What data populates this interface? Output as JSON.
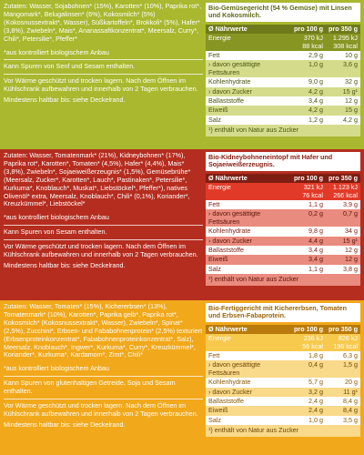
{
  "sections": [
    {
      "ingredients": "Zutaten: Wasser, Sojabohnen* (15%), Karotten* (10%), Paprika rot*, Mangomark*, Belugalinsen* (6%), Kokosmilch* (5%) (Kokosnussextrakt*, Wasser), Süßkartoffeln*, Brokkoli* (5%), Hafer* (3,8%), Zwiebeln*, Mais*, Ananassaftkonzentrat*, Meersalz, Curry*, Chili*, Petersilie*, Pfeffer*",
      "organic_note": "*aus kontrolliert biologischem Anbau",
      "allergen": "Kann Spuren von Senf und Sesam enthalten.",
      "storage": "Vor Wärme geschützt und trocken lagern. Nach dem Öffnen im Kühlschrank aufbewahren und innerhalb von 2 Tagen verbrauchen.",
      "best_before": "Mindestens haltbar bis: siehe Deckelrand.",
      "product_title": "Bio-Gemüsegericht (54 % Gemüse) mit Linsen und Kokosmilch.",
      "table_head": [
        "Ø Nährwerte",
        "pro 100 g",
        "pro 350 g"
      ],
      "rows": [
        {
          "label": "Energie",
          "v1": "370 kJ\n88 kcal",
          "v2": "1.295 kJ\n308 kcal"
        },
        {
          "label": "Fett",
          "v1": "2,9 g",
          "v2": "10 g"
        },
        {
          "label": "› davon gesättigte Fettsäuren",
          "v1": "1,0 g",
          "v2": "3,6 g"
        },
        {
          "label": "Kohlenhydrate",
          "v1": "9,0 g",
          "v2": "32 g"
        },
        {
          "label": "› davon Zucker",
          "v1": "4,2 g",
          "v2": "15 g¹"
        },
        {
          "label": "Ballaststoffe",
          "v1": "3,4 g",
          "v2": "12 g"
        },
        {
          "label": "Eiweiß",
          "v1": "4,2 g",
          "v2": "15 g"
        },
        {
          "label": "Salz",
          "v1": "1,2 g",
          "v2": "4,2 g"
        }
      ],
      "footnote": "¹) enthält von Natur aus Zucker"
    },
    {
      "ingredients": "Zutaten: Wasser, Tomatenmark* (21%), Kidneybohnen* (17%), Paprika rot*, Karotten*, Tomaten* (4,5%), Hafer* (4,4%), Mais* (3,8%), Zwiebeln*, Sojaeiweißerzeugnis* (1,5%), Gemüsebrühe* (Meersalz, Zucker*, Karotten*, Lauch*, Pastinaken*, Petersilie*, Kurkuma*, Knoblauch*, Muskat*, Liebstöckel*, Pfeffer*), natives Olivenöl* extra, Meersalz, Knoblauch*, Chili* (0,1%), Koriander*, Kreuzkümmel*, Liebstöckel*",
      "organic_note": "*aus kontrolliert biologischem Anbau",
      "allergen": "Kann Spuren von Sesam enthalten.",
      "storage": "Vor Wärme geschützt und trocken lagern. Nach dem Öffnen im Kühlschrank aufbewahren und innerhalb von 2 Tagen verbrauchen.",
      "best_before": "Mindestens haltbar bis: siehe Deckelrand.",
      "product_title": "Bio-Kidneybohneneintopf mit Hafer und Sojaeiweißerzeugnis.",
      "table_head": [
        "Ø Nährwerte",
        "pro 100 g",
        "pro 350 g"
      ],
      "rows": [
        {
          "label": "Energie",
          "v1": "321 kJ\n76 kcal",
          "v2": "1.123 kJ\n266 kcal"
        },
        {
          "label": "Fett",
          "v1": "1,1 g",
          "v2": "3,9 g"
        },
        {
          "label": "› davon gesättigte Fettsäuren",
          "v1": "0,2 g",
          "v2": "0,7 g"
        },
        {
          "label": "Kohlenhydrate",
          "v1": "9,8 g",
          "v2": "34 g"
        },
        {
          "label": "› davon Zucker",
          "v1": "4,4 g",
          "v2": "15 g¹"
        },
        {
          "label": "Ballaststoffe",
          "v1": "3,4 g",
          "v2": "12 g"
        },
        {
          "label": "Eiweiß",
          "v1": "3,4 g",
          "v2": "12 g"
        },
        {
          "label": "Salz",
          "v1": "1,1 g",
          "v2": "3,8 g"
        }
      ],
      "footnote": "¹) enthält von Natur aus Zucker"
    },
    {
      "ingredients": "Zutaten: Wasser, Tomaten* (15%), Kichererbsen* (13%), Tomatenmark* (10%), Karotten*, Paprika gelb*, Paprika rot*, Kokosmilch* (Kokosnussextrakt*, Wasser), Zwiebeln*, Spinat* (2,5%), Zucchini*, Erbsen- und Fababohnenprotein* (2,5%) texturiert (Erbsenproteinkonzentrat*, Fababohnenproteinkonzentrat*, Salz), Meersalz, Knoblauch*, Ingwer*, Kurkuma*, Curry*, Kreuzkümmel*, Koriander*, Kurkuma*, Kardamom*, Zimt*, Chili*",
      "organic_note": "*aus kontrolliert biologischem Anbau",
      "allergen": "Kann Spuren von glutenhaltigen Getreide, Soja und Sesam enthalten.",
      "storage": "Vor Wärme geschützt und trocken lagern. Nach dem Öffnen im Kühlschrank aufbewahren und innerhalb von 2 Tagen verbrauchen.",
      "best_before": "Mindestens haltbar bis: siehe Deckelrand.",
      "product_title": "Bio-Fertiggericht mit Kichererbsen, Tomaten und Erbsen-Fabaprotein.",
      "table_head": [
        "Ø Nährwerte",
        "pro 100 g",
        "pro 350 g"
      ],
      "rows": [
        {
          "label": "Energie",
          "v1": "236 kJ\n56 kcal",
          "v2": "826 kJ\n196 kcal"
        },
        {
          "label": "Fett",
          "v1": "1,8 g",
          "v2": "6,3 g"
        },
        {
          "label": "› davon gesättigte Fettsäuren",
          "v1": "0,4 g",
          "v2": "1,5 g"
        },
        {
          "label": "Kohlenhydrate",
          "v1": "5,7 g",
          "v2": "20 g"
        },
        {
          "label": "› davon Zucker",
          "v1": "3,2 g",
          "v2": "11 g¹"
        },
        {
          "label": "Ballaststoffe",
          "v1": "2,4 g",
          "v2": "8,4 g"
        },
        {
          "label": "Eiweiß",
          "v1": "2,4 g",
          "v2": "8,4 g"
        },
        {
          "label": "Salz",
          "v1": "1,0 g",
          "v2": "3,5 g"
        }
      ],
      "footnote": "¹) enthält von Natur aus Zucker"
    }
  ]
}
